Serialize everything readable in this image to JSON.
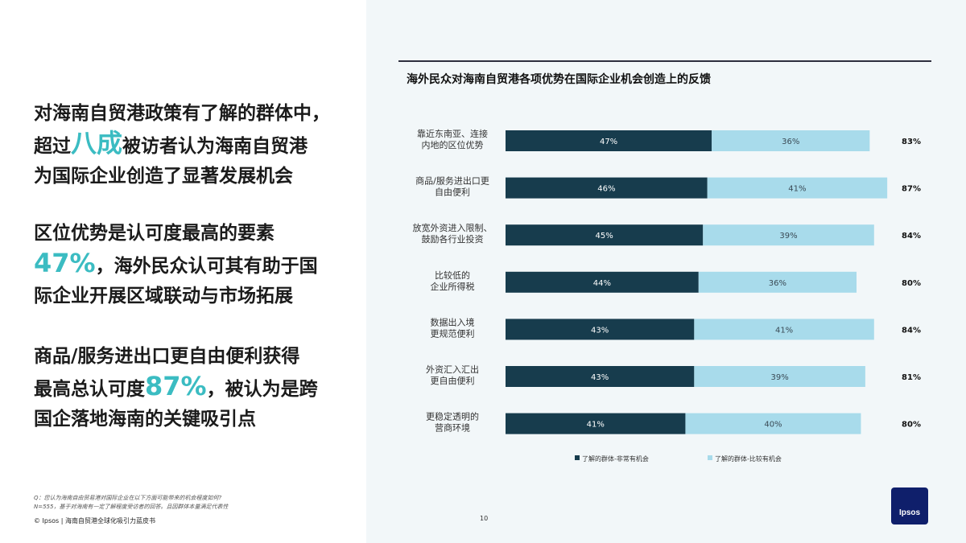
{
  "left": {
    "p1": {
      "line1": "对海南自贸港政策有了解的群体中，",
      "pre": "超过",
      "hl": "八成",
      "post": "被访者认为海南自贸港",
      "line3": "为国际企业创造了显著发展机会"
    },
    "p2": {
      "line1": "区位优势是认可度最高的要素",
      "hl": "47%",
      "post": "，海外民众认可其有助于国",
      "line3": "际企业开展区域联动与市场拓展"
    },
    "p3": {
      "line1": "商品/服务进出口更自由便利获得",
      "pre": "最高总认可度",
      "hl": "87%",
      "post": "，被认为是跨",
      "line3": "国企落地海南的关键吸引点"
    },
    "footnote1": "Q：您认为海南自由贸易港对国际企业在以下方面可能带来的机会程度如何?",
    "footnote2": "N=555，基于对海南有一定了解程度受访者的回答。且因群体本量满足代表性",
    "footer": "© Ipsos | 海南自贸港全球化吸引力蓝皮书"
  },
  "page_number": "10",
  "logo_text": "Ipsos",
  "colors": {
    "dark": "#173c4d",
    "light": "#a8dbeb",
    "accent": "#3bbcc2"
  },
  "chart_data": {
    "type": "bar",
    "stacked": true,
    "orientation": "horizontal",
    "title": "海外民众对海南自贸港各项优势在国际企业机会创造上的反馈",
    "categories": [
      [
        "靠近东南亚、连接",
        "内地的区位优势"
      ],
      [
        "商品/服务进出口更",
        "自由便利"
      ],
      [
        "放宽外资进入限制、",
        "鼓励各行业投资"
      ],
      [
        "比较低的",
        "企业所得税"
      ],
      [
        "数据出入境",
        "更规范便利"
      ],
      [
        "外资汇入汇出",
        "更自由便利"
      ],
      [
        "更稳定透明的",
        "营商环境"
      ]
    ],
    "series": [
      {
        "name": "了解的群体-非常有机会",
        "values": [
          47,
          46,
          45,
          44,
          43,
          43,
          41
        ]
      },
      {
        "name": "了解的群体-比较有机会",
        "values": [
          36,
          41,
          39,
          36,
          41,
          39,
          40
        ]
      }
    ],
    "totals": [
      "83%",
      "87%",
      "84%",
      "80%",
      "84%",
      "81%",
      "80%"
    ],
    "value_labels": [
      [
        "47%",
        "46%",
        "45%",
        "44%",
        "43%",
        "43%",
        "41%"
      ],
      [
        "36%",
        "41%",
        "39%",
        "36%",
        "41%",
        "39%",
        "40%"
      ]
    ],
    "legend_position": "bottom"
  }
}
